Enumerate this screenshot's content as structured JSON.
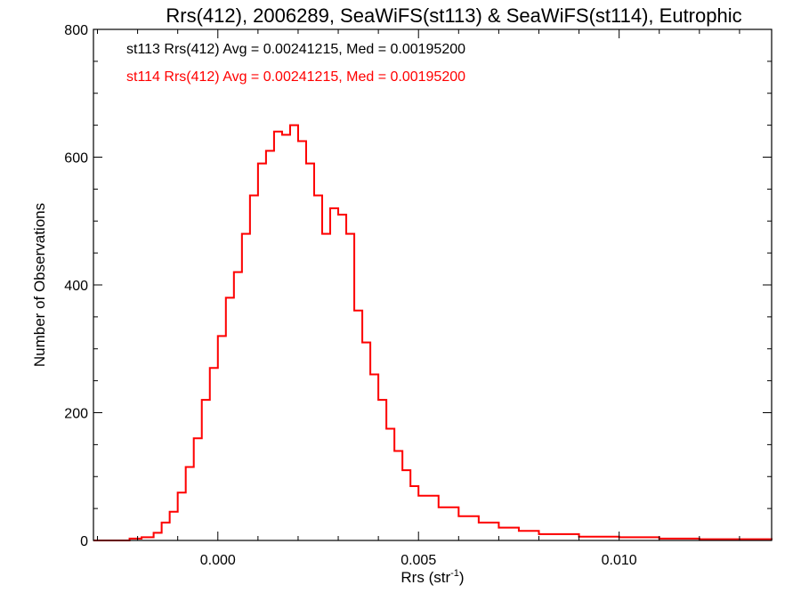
{
  "chart_data": {
    "type": "histogram",
    "title": "Rrs(412), 2006289, SeaWiFS(st113) & SeaWiFS(st114), Eutrophic",
    "xlabel_main": "Rrs (str",
    "xlabel_sup": "-1",
    "xlabel_close": ")",
    "ylabel": "Number of Observations",
    "xlim": [
      -0.0031,
      0.0138
    ],
    "ylim": [
      0,
      800
    ],
    "x_ticks": [
      0.0,
      0.005,
      0.01
    ],
    "x_tick_labels": [
      "0.000",
      "0.005",
      "0.010"
    ],
    "y_ticks": [
      0,
      200,
      400,
      600,
      800
    ],
    "y_tick_labels": [
      "0",
      "200",
      "400",
      "600",
      "800"
    ],
    "grid": false,
    "legend_position": "top-left",
    "series": [
      {
        "name": "st113 Rrs(412) Avg = 0.00241215, Med = 0.00195200",
        "color": "#000000",
        "points": [
          [
            -0.0031,
            0
          ],
          [
            -0.0026,
            0
          ],
          [
            -0.0022,
            3
          ],
          [
            -0.0019,
            5
          ],
          [
            -0.0016,
            12
          ],
          [
            -0.0014,
            28
          ],
          [
            -0.0012,
            45
          ],
          [
            -0.001,
            75
          ],
          [
            -0.0008,
            115
          ],
          [
            -0.0006,
            160
          ],
          [
            -0.0004,
            220
          ],
          [
            -0.0002,
            270
          ],
          [
            0.0,
            320
          ],
          [
            0.0002,
            380
          ],
          [
            0.0004,
            420
          ],
          [
            0.0006,
            480
          ],
          [
            0.0008,
            540
          ],
          [
            0.001,
            590
          ],
          [
            0.0012,
            610
          ],
          [
            0.0014,
            640
          ],
          [
            0.0016,
            635
          ],
          [
            0.0018,
            650
          ],
          [
            0.002,
            625
          ],
          [
            0.0022,
            590
          ],
          [
            0.0024,
            540
          ],
          [
            0.0026,
            480
          ],
          [
            0.0028,
            520
          ],
          [
            0.003,
            510
          ],
          [
            0.0032,
            480
          ],
          [
            0.0034,
            360
          ],
          [
            0.0036,
            310
          ],
          [
            0.0038,
            260
          ],
          [
            0.004,
            220
          ],
          [
            0.0042,
            175
          ],
          [
            0.0044,
            140
          ],
          [
            0.0046,
            110
          ],
          [
            0.0048,
            85
          ],
          [
            0.005,
            70
          ],
          [
            0.0055,
            52
          ],
          [
            0.006,
            38
          ],
          [
            0.0065,
            28
          ],
          [
            0.007,
            20
          ],
          [
            0.0075,
            15
          ],
          [
            0.008,
            10
          ],
          [
            0.009,
            6
          ],
          [
            0.01,
            5
          ],
          [
            0.011,
            3
          ],
          [
            0.012,
            2
          ],
          [
            0.0138,
            1
          ]
        ]
      },
      {
        "name": "st114 Rrs(412) Avg = 0.00241215, Med = 0.00195200",
        "color": "#ff0000",
        "points": [
          [
            -0.0031,
            0
          ],
          [
            -0.0026,
            0
          ],
          [
            -0.0022,
            3
          ],
          [
            -0.0019,
            5
          ],
          [
            -0.0016,
            12
          ],
          [
            -0.0014,
            28
          ],
          [
            -0.0012,
            45
          ],
          [
            -0.001,
            75
          ],
          [
            -0.0008,
            115
          ],
          [
            -0.0006,
            160
          ],
          [
            -0.0004,
            220
          ],
          [
            -0.0002,
            270
          ],
          [
            0.0,
            320
          ],
          [
            0.0002,
            380
          ],
          [
            0.0004,
            420
          ],
          [
            0.0006,
            480
          ],
          [
            0.0008,
            540
          ],
          [
            0.001,
            590
          ],
          [
            0.0012,
            610
          ],
          [
            0.0014,
            640
          ],
          [
            0.0016,
            635
          ],
          [
            0.0018,
            650
          ],
          [
            0.002,
            625
          ],
          [
            0.0022,
            590
          ],
          [
            0.0024,
            540
          ],
          [
            0.0026,
            480
          ],
          [
            0.0028,
            520
          ],
          [
            0.003,
            510
          ],
          [
            0.0032,
            480
          ],
          [
            0.0034,
            360
          ],
          [
            0.0036,
            310
          ],
          [
            0.0038,
            260
          ],
          [
            0.004,
            220
          ],
          [
            0.0042,
            175
          ],
          [
            0.0044,
            140
          ],
          [
            0.0046,
            110
          ],
          [
            0.0048,
            85
          ],
          [
            0.005,
            70
          ],
          [
            0.0055,
            52
          ],
          [
            0.006,
            38
          ],
          [
            0.0065,
            28
          ],
          [
            0.007,
            20
          ],
          [
            0.0075,
            15
          ],
          [
            0.008,
            10
          ],
          [
            0.009,
            6
          ],
          [
            0.01,
            5
          ],
          [
            0.011,
            3
          ],
          [
            0.012,
            2
          ],
          [
            0.0138,
            1
          ]
        ]
      }
    ]
  }
}
